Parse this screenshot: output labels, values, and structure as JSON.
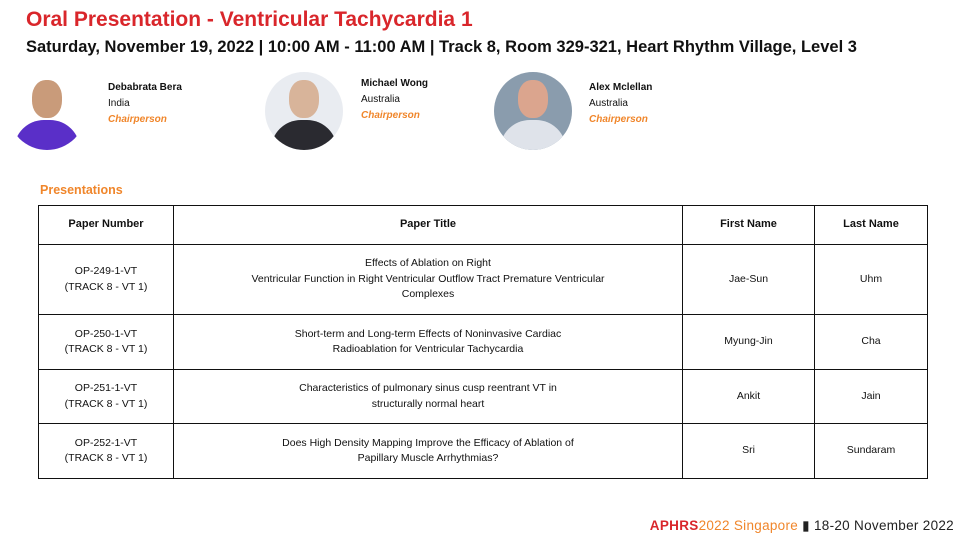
{
  "header": {
    "title": "Oral Presentation - Ventricular Tachycardia 1",
    "subtitle": "Saturday, November 19, 2022 | 10:00 AM - 11:00 AM | Track 8, Room 329-321, Heart Rhythm Village, Level 3"
  },
  "chairs": [
    {
      "name": "Debabrata Bera",
      "country": "India",
      "role": "Chairperson"
    },
    {
      "name": "Michael Wong",
      "country": "Australia",
      "role": "Chairperson"
    },
    {
      "name": "Alex Mclellan",
      "country": "Australia",
      "role": "Chairperson"
    }
  ],
  "presentations": {
    "label": "Presentations",
    "columns": [
      "Paper Number",
      "Paper Title",
      "First Name",
      "Last Name"
    ],
    "rows": [
      {
        "number": "OP-249-1-VT",
        "track": "(TRACK 8 - VT 1)",
        "title": [
          "Effects of Ablation on Right",
          "Ventricular Function in Right Ventricular Outflow Tract Premature Ventricular",
          "Complexes"
        ],
        "first": "Jae-Sun",
        "last": "Uhm"
      },
      {
        "number": "OP-250-1-VT",
        "track": "(TRACK 8 - VT 1)",
        "title": [
          "Short-term and Long-term Effects of Noninvasive Cardiac",
          "Radioablation for Ventricular Tachycardia"
        ],
        "first": "Myung-Jin",
        "last": "Cha"
      },
      {
        "number": "OP-251-1-VT",
        "track": "(TRACK 8 - VT 1)",
        "title": [
          "Characteristics of pulmonary sinus cusp reentrant VT in",
          "structurally normal heart"
        ],
        "first": "Ankit",
        "last": "Jain"
      },
      {
        "number": "OP-252-1-VT",
        "track": "(TRACK 8 - VT 1)",
        "title": [
          "Does High Density Mapping Improve the Efficacy of Ablation of",
          "Papillary Muscle Arrhythmias?"
        ],
        "first": "Sri",
        "last": "Sundaram"
      }
    ]
  },
  "footer": {
    "brand": "APHRS",
    "year": "2022",
    "city": " Singapore",
    "sep": " ▮ ",
    "dates": "18-20 November 2022"
  },
  "colors": {
    "title": "#d9262b",
    "accent": "#f0862b"
  }
}
